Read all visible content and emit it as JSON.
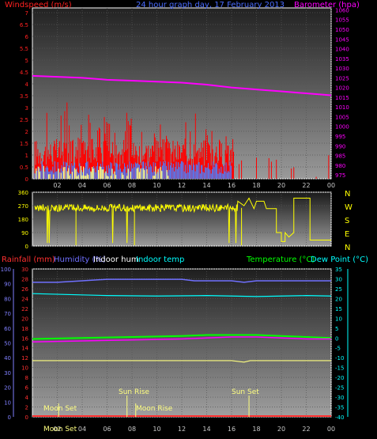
{
  "header": {
    "windspeed_label": "Windspeed (m/s)",
    "title": "24 hour graph day, 17 February 2013",
    "barometer_label": "Barometer (hpa)"
  },
  "colors": {
    "wind_gust": "#ff0000",
    "wind_avg": "#4a7fff",
    "wind_calm": "#ffff80",
    "barometer": "#ff00ff",
    "direction": "#ffff00",
    "rain": "#ff3030",
    "humidity": "#7070ff",
    "indoor_hum": "#ffffff",
    "indoor_temp": "#00ffff",
    "temperature": "#00ff00",
    "dewpoint": "#00ffff",
    "moon_sun": "#ffff80"
  },
  "chart_data": [
    {
      "type": "line",
      "name": "wind-baro",
      "title": "24 hour graph day, 17 February 2013",
      "x_ticks": [
        "02",
        "04",
        "06",
        "08",
        "10",
        "12",
        "14",
        "16",
        "18",
        "20",
        "22",
        "00"
      ],
      "y_left": {
        "label": "Windspeed (m/s)",
        "ticks": [
          "0",
          "0.5",
          "1",
          "1.5",
          "2",
          "2.5",
          "3",
          "3.5",
          "4",
          "4.5",
          "5",
          "5.5",
          "6",
          "6.5",
          "7"
        ],
        "range": [
          0,
          7.2
        ]
      },
      "y_right": {
        "label": "Barometer (hpa)",
        "ticks": [
          "975",
          "980",
          "985",
          "990",
          "995",
          "1000",
          "1005",
          "1010",
          "1015",
          "1020",
          "1025",
          "1030",
          "1035",
          "1040",
          "1045",
          "1050",
          "1055",
          "1060"
        ],
        "range": [
          973,
          1061
        ]
      },
      "barometer_hours": [
        0,
        2,
        4,
        6,
        8,
        10,
        12,
        14,
        16,
        18,
        20,
        22,
        24
      ],
      "barometer_values": [
        1026,
        1025.5,
        1025,
        1024,
        1023.5,
        1023,
        1022.5,
        1021.5,
        1020,
        1019,
        1018,
        1017,
        1016
      ]
    },
    {
      "type": "scatter",
      "name": "wind-direction",
      "x_ticks": [
        "02",
        "04",
        "06",
        "08",
        "10",
        "12",
        "14",
        "16",
        "18",
        "20",
        "22",
        "00"
      ],
      "y_ticks": [
        "0",
        "90",
        "180",
        "270",
        "360"
      ],
      "range": [
        0,
        360
      ],
      "compass": [
        "N",
        "W",
        "S",
        "E",
        "N"
      ]
    },
    {
      "type": "line",
      "name": "temp-hum-rain",
      "legend": {
        "rainfall": "Rainfall (mm)",
        "humidity": "Humidity (%)",
        "indoor_hum": "Indoor hum",
        "indoor_temp": "Indoor temp",
        "temperature": "Temperature (°C)",
        "dewpoint": "Dew Point (°C)"
      },
      "y_left_outer": [
        "0",
        "10",
        "20",
        "30",
        "40",
        "50",
        "60",
        "70",
        "80",
        "90",
        "100"
      ],
      "y_left_inner": [
        "0",
        "2",
        "4",
        "6",
        "8",
        "10",
        "12",
        "14",
        "16",
        "18",
        "20",
        "22",
        "24",
        "26",
        "28",
        "30"
      ],
      "y_right": [
        "-40",
        "-35",
        "-30",
        "-25",
        "-20",
        "-15",
        "-10",
        "-5",
        "0",
        "5",
        "10",
        "15",
        "20",
        "25",
        "30",
        "35"
      ],
      "x_ticks": [
        "02",
        "04",
        "06",
        "08",
        "10",
        "12",
        "14",
        "16",
        "18",
        "20",
        "22",
        "00"
      ],
      "events": {
        "moon_set_label": "Moon Set",
        "moon_rise_label": "Moon Rise",
        "sun_rise_label": "Sun Rise",
        "sun_set_label": "Sun Set",
        "moon_set_hour": 2.1,
        "moon_rise_hour": 8.3,
        "sun_rise_hour": 7.6,
        "sun_set_hour": 17.4
      },
      "humidity_hours": [
        0,
        2,
        4,
        6,
        8,
        12,
        13,
        16,
        17,
        18,
        20,
        22,
        24
      ],
      "humidity_values": [
        91,
        91,
        92,
        93,
        93,
        93,
        92,
        92,
        91,
        92,
        92,
        92,
        92
      ],
      "indoor_temp_hours": [
        0,
        3,
        6,
        10,
        14,
        18,
        22,
        24
      ],
      "indoor_temp_values": [
        25,
        24.8,
        24.6,
        24.5,
        24.6,
        24.4,
        24.6,
        24.5
      ],
      "temperature_hours": [
        0,
        4,
        8,
        12,
        14,
        16,
        18,
        20,
        22,
        24
      ],
      "temperature_values": [
        -0.5,
        0,
        0.5,
        1,
        1.5,
        1.5,
        1.5,
        1,
        0.5,
        0
      ],
      "dewpoint_hours": [
        0,
        4,
        8,
        12,
        14,
        16,
        18,
        20,
        22,
        24
      ],
      "dewpoint_values": [
        -2,
        -1.5,
        -1,
        -0.5,
        0,
        0.5,
        0.5,
        0,
        -0.5,
        -0.5
      ],
      "indoor_hum_hours": [
        0,
        4,
        8,
        12,
        16,
        17,
        17.5,
        20,
        24
      ],
      "indoor_hum_values": [
        38,
        38,
        38,
        38,
        38,
        37,
        38,
        38,
        38
      ]
    }
  ]
}
